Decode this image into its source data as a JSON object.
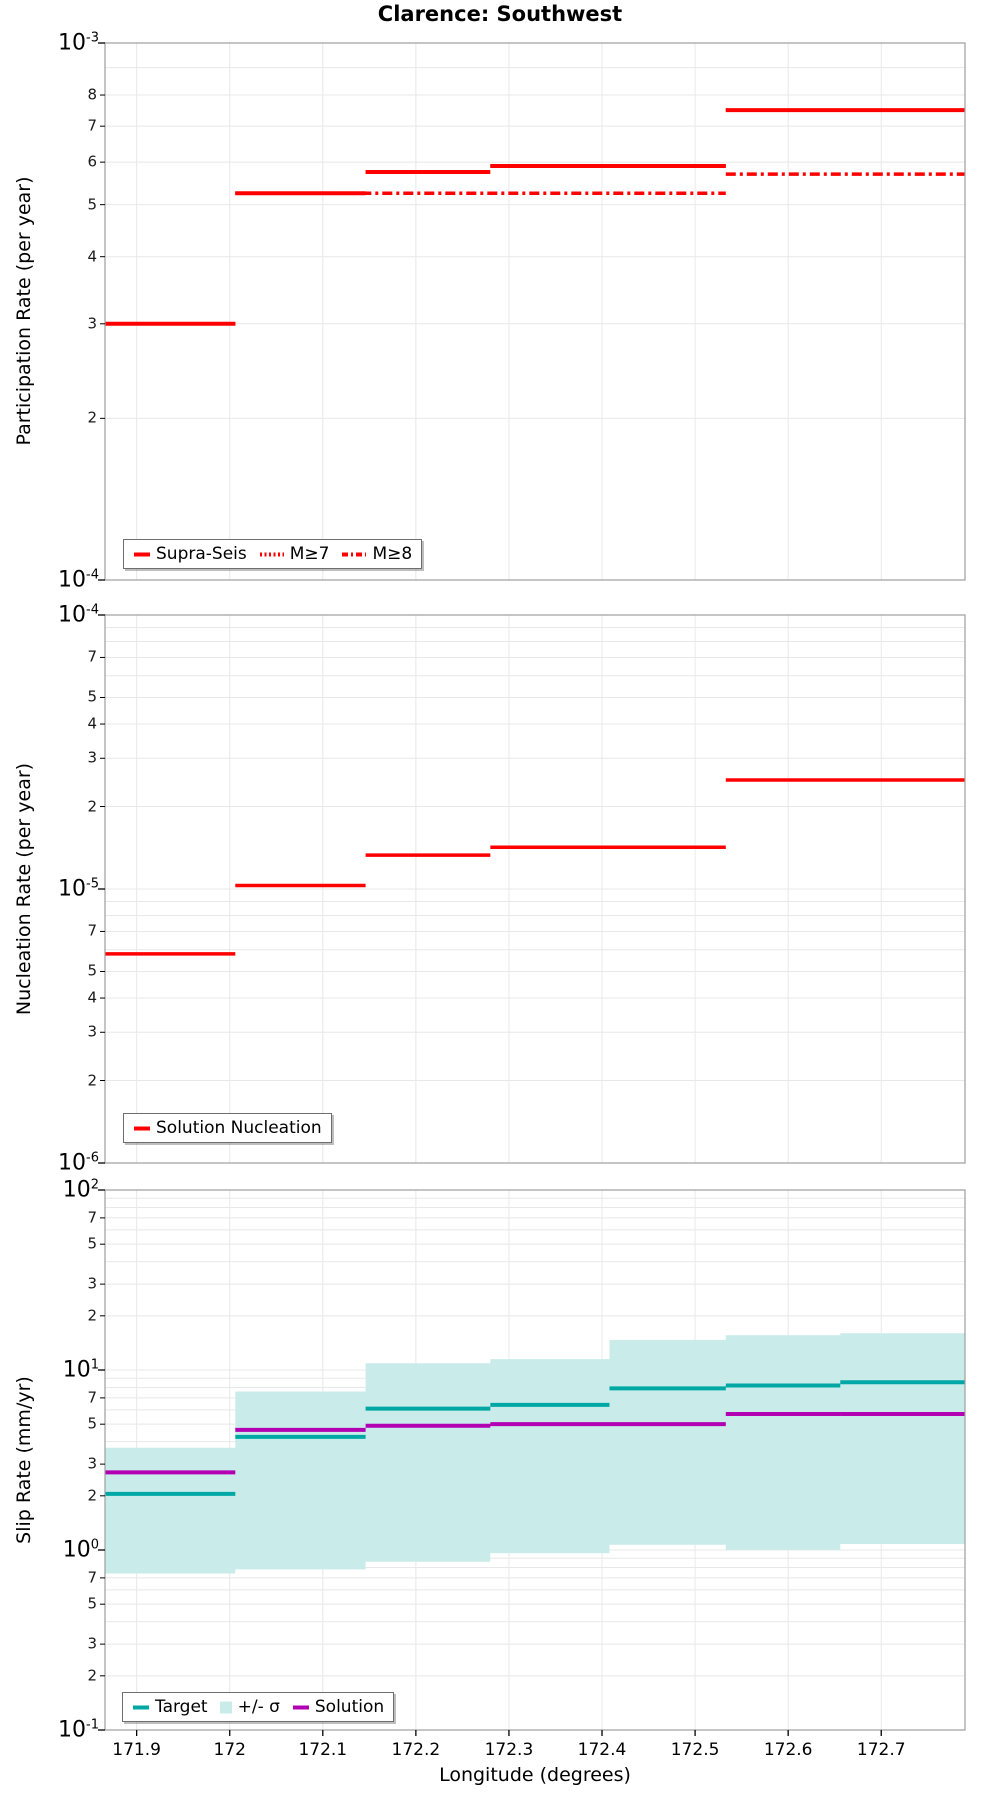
{
  "title": "Clarence: Southwest",
  "colors": {
    "red": "#FF0000",
    "teal": "#00A8A5",
    "purple": "#B200B2",
    "band": "#C9EBEA",
    "grid": "#E8E8E8",
    "axis": "#9E9E9E",
    "tick": "#1a1a1a"
  },
  "x_axis": {
    "label": "Longitude (degrees)",
    "range": [
      171.866,
      172.79
    ],
    "ticks": [
      {
        "v": 171.9,
        "label": "171.9"
      },
      {
        "v": 172.0,
        "label": "172"
      },
      {
        "v": 172.1,
        "label": "172.1"
      },
      {
        "v": 172.2,
        "label": "172.2"
      },
      {
        "v": 172.3,
        "label": "172.3"
      },
      {
        "v": 172.4,
        "label": "172.4"
      },
      {
        "v": 172.5,
        "label": "172.5"
      },
      {
        "v": 172.6,
        "label": "172.6"
      },
      {
        "v": 172.7,
        "label": "172.7"
      }
    ]
  },
  "chart_data": [
    {
      "type": "line",
      "ylabel": "Participation Rate (per year)",
      "ylog": true,
      "ylim": [
        0.0001,
        0.001
      ],
      "grid": true,
      "legend_position": "bottom-left",
      "x_edges": [
        171.866,
        172.006,
        172.146,
        172.28,
        172.533,
        172.79
      ],
      "series": [
        {
          "name": "Supra-Seis",
          "style": "solid",
          "color_key": "red",
          "width": 4,
          "values": [
            0.0003,
            0.000525,
            0.000575,
            0.00059,
            0.00075
          ]
        },
        {
          "name": "M≥7",
          "style": "dotted",
          "color_key": "red",
          "width": 3,
          "values": [
            0.0003,
            0.000525,
            0.000575,
            0.00059,
            0.00075
          ]
        },
        {
          "name": "M≥8",
          "style": "dashdot",
          "color_key": "red",
          "width": 3.5,
          "x_edges": [
            171.866,
            172.006,
            172.533,
            172.79
          ],
          "values": [
            0.0003,
            0.000525,
            0.00057
          ]
        }
      ],
      "legend": [
        {
          "label": "Supra-Seis",
          "swatch": "solid",
          "color_key": "red"
        },
        {
          "label": "M≥7",
          "swatch": "dotted",
          "color_key": "red"
        },
        {
          "label": "M≥8",
          "swatch": "dashdot",
          "color_key": "red"
        }
      ],
      "y_major_ticks": [
        {
          "v": 0.001,
          "base": "10",
          "exp": "-3"
        },
        {
          "v": 0.0001,
          "base": "10",
          "exp": "-4"
        }
      ],
      "y_minor_labels": [
        {
          "v": 0.0008,
          "label": "8"
        },
        {
          "v": 0.0007,
          "label": "7"
        },
        {
          "v": 0.0006,
          "label": "6"
        },
        {
          "v": 0.0005,
          "label": "5"
        },
        {
          "v": 0.0004,
          "label": "4"
        },
        {
          "v": 0.0003,
          "label": "3"
        },
        {
          "v": 0.0002,
          "label": "2"
        }
      ]
    },
    {
      "type": "line",
      "ylabel": "Nucleation Rate (per year)",
      "ylog": true,
      "ylim": [
        1e-06,
        0.0001
      ],
      "grid": true,
      "legend_position": "bottom-left",
      "x_edges": [
        171.866,
        172.006,
        172.146,
        172.28,
        172.533,
        172.79
      ],
      "series": [
        {
          "name": "Solution Nucleation",
          "style": "solid",
          "color_key": "red",
          "width": 3.5,
          "values": [
            5.8e-06,
            1.03e-05,
            1.33e-05,
            1.42e-05,
            2.5e-05
          ]
        }
      ],
      "legend": [
        {
          "label": "Solution Nucleation",
          "swatch": "solid",
          "color_key": "red"
        }
      ],
      "y_major_ticks": [
        {
          "v": 0.0001,
          "base": "10",
          "exp": "-4"
        },
        {
          "v": 1e-05,
          "base": "10",
          "exp": "-5"
        },
        {
          "v": 1e-06,
          "base": "10",
          "exp": "-6"
        }
      ],
      "y_minor_labels": [
        {
          "v": 7e-05,
          "label": "7"
        },
        {
          "v": 5e-05,
          "label": "5"
        },
        {
          "v": 4e-05,
          "label": "4"
        },
        {
          "v": 3e-05,
          "label": "3"
        },
        {
          "v": 2e-05,
          "label": "2"
        },
        {
          "v": 7e-06,
          "label": "7"
        },
        {
          "v": 5e-06,
          "label": "5"
        },
        {
          "v": 4e-06,
          "label": "4"
        },
        {
          "v": 3e-06,
          "label": "3"
        },
        {
          "v": 2e-06,
          "label": "2"
        }
      ]
    },
    {
      "type": "line",
      "ylabel": "Slip Rate (mm/yr)",
      "ylog": true,
      "ylim": [
        0.1,
        100
      ],
      "grid": true,
      "legend_position": "bottom-left",
      "x_edges": [
        171.866,
        172.006,
        172.146,
        172.28,
        172.408,
        172.533,
        172.656,
        172.79
      ],
      "series": [
        {
          "name": "+/- σ",
          "style": "band",
          "color_key": "band",
          "hi": [
            3.7,
            7.6,
            10.9,
            11.5,
            14.7,
            15.6,
            16.0
          ],
          "lo": [
            0.74,
            0.78,
            0.86,
            0.96,
            1.07,
            1.0,
            1.08
          ]
        },
        {
          "name": "Target",
          "style": "solid",
          "color_key": "teal",
          "width": 4,
          "values": [
            2.05,
            4.25,
            6.1,
            6.4,
            7.9,
            8.2,
            8.55
          ]
        },
        {
          "name": "Solution",
          "style": "solid",
          "color_key": "purple",
          "width": 4,
          "values": [
            2.7,
            4.65,
            4.9,
            5.0,
            5.0,
            5.7,
            5.7
          ]
        }
      ],
      "legend": [
        {
          "label": "Target",
          "swatch": "solid",
          "color_key": "teal"
        },
        {
          "label": "+/- σ",
          "swatch": "band",
          "color_key": "band"
        },
        {
          "label": "Solution",
          "swatch": "solid",
          "color_key": "purple"
        }
      ],
      "y_major_ticks": [
        {
          "v": 100,
          "base": "10",
          "exp": "2"
        },
        {
          "v": 10,
          "base": "10",
          "exp": "1"
        },
        {
          "v": 1,
          "base": "10",
          "exp": "0"
        },
        {
          "v": 0.1,
          "base": "10",
          "exp": "-1"
        }
      ],
      "y_minor_labels": [
        {
          "v": 70,
          "label": "7"
        },
        {
          "v": 50,
          "label": "5"
        },
        {
          "v": 30,
          "label": "3"
        },
        {
          "v": 20,
          "label": "2"
        },
        {
          "v": 7,
          "label": "7"
        },
        {
          "v": 5,
          "label": "5"
        },
        {
          "v": 3,
          "label": "3"
        },
        {
          "v": 2,
          "label": "2"
        },
        {
          "v": 0.7,
          "label": "7"
        },
        {
          "v": 0.5,
          "label": "5"
        },
        {
          "v": 0.3,
          "label": "3"
        },
        {
          "v": 0.2,
          "label": "2"
        }
      ]
    }
  ]
}
